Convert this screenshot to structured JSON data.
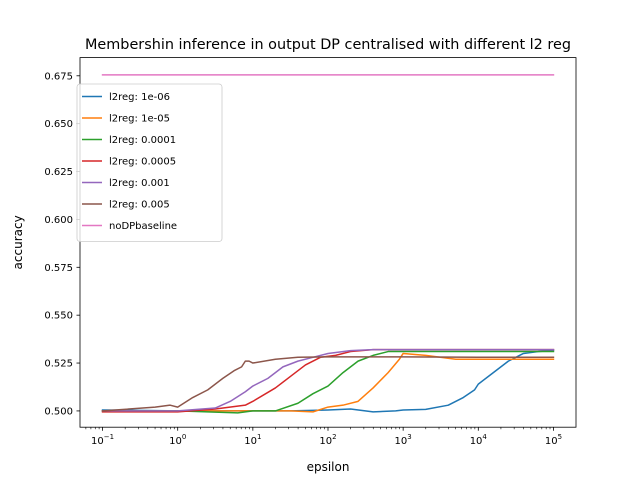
{
  "chart_data": {
    "type": "line",
    "title": "Membershin inference in output DP centralised with different l2 reg",
    "xlabel": "epsilon",
    "ylabel": "accuracy",
    "x_scale": "log",
    "xlim_log10": [
      -1.3,
      5.3
    ],
    "ylim": [
      0.4915,
      0.6845
    ],
    "x_ticks": [
      {
        "exp": -1,
        "label_base": "10",
        "label_exp": "−1"
      },
      {
        "exp": 0,
        "label_base": "10",
        "label_exp": "0"
      },
      {
        "exp": 1,
        "label_base": "10",
        "label_exp": "1"
      },
      {
        "exp": 2,
        "label_base": "10",
        "label_exp": "2"
      },
      {
        "exp": 3,
        "label_base": "10",
        "label_exp": "3"
      },
      {
        "exp": 4,
        "label_base": "10",
        "label_exp": "4"
      },
      {
        "exp": 5,
        "label_base": "10",
        "label_exp": "5"
      }
    ],
    "y_ticks": [
      {
        "value": 0.5,
        "label": "0.500"
      },
      {
        "value": 0.525,
        "label": "0.525"
      },
      {
        "value": 0.55,
        "label": "0.550"
      },
      {
        "value": 0.575,
        "label": "0.575"
      },
      {
        "value": 0.6,
        "label": "0.600"
      },
      {
        "value": 0.625,
        "label": "0.625"
      },
      {
        "value": 0.65,
        "label": "0.650"
      },
      {
        "value": 0.675,
        "label": "0.675"
      }
    ],
    "grid": false,
    "legend_position": "upper-left",
    "series": [
      {
        "name": "l2reg: 1e-06",
        "color": "#1f77b4",
        "log_x": [
          -1,
          0,
          1,
          1.5,
          2,
          2.3,
          2.6,
          2.9,
          3,
          3.3,
          3.6,
          3.8,
          3.95,
          4,
          4.2,
          4.4,
          4.6,
          4.8,
          5
        ],
        "y": [
          0.5005,
          0.5,
          0.5,
          0.5,
          0.5005,
          0.501,
          0.4995,
          0.5,
          0.5005,
          0.5008,
          0.503,
          0.507,
          0.511,
          0.514,
          0.52,
          0.526,
          0.53,
          0.531,
          0.5315
        ]
      },
      {
        "name": "l2reg: 1e-05",
        "color": "#ff7f0e",
        "log_x": [
          -1,
          0,
          1,
          1.5,
          1.8,
          2,
          2.2,
          2.4,
          2.6,
          2.8,
          2.95,
          3,
          3.3,
          3.7,
          4,
          4.5,
          5
        ],
        "y": [
          0.5,
          0.5,
          0.5,
          0.5,
          0.4995,
          0.502,
          0.503,
          0.505,
          0.512,
          0.52,
          0.527,
          0.53,
          0.529,
          0.527,
          0.527,
          0.527,
          0.527
        ]
      },
      {
        "name": "l2reg: 0.0001",
        "color": "#2ca02c",
        "log_x": [
          -1,
          0,
          0.8,
          1,
          1.3,
          1.6,
          1.8,
          2,
          2.2,
          2.4,
          2.6,
          2.8,
          3,
          3.5,
          4,
          5
        ],
        "y": [
          0.5,
          0.5,
          0.499,
          0.5,
          0.5,
          0.504,
          0.509,
          0.513,
          0.52,
          0.526,
          0.529,
          0.531,
          0.531,
          0.531,
          0.531,
          0.531
        ]
      },
      {
        "name": "l2reg: 0.0005",
        "color": "#d62728",
        "log_x": [
          -1,
          -0.4,
          0,
          0.5,
          0.9,
          1,
          1.3,
          1.5,
          1.7,
          1.9,
          2.1,
          2.3,
          2.6,
          3,
          4,
          5
        ],
        "y": [
          0.4995,
          0.4995,
          0.4995,
          0.501,
          0.503,
          0.505,
          0.512,
          0.518,
          0.524,
          0.528,
          0.529,
          0.531,
          0.532,
          0.532,
          0.532,
          0.532
        ]
      },
      {
        "name": "l2reg: 0.001",
        "color": "#9467bd",
        "log_x": [
          -1,
          0,
          0.5,
          0.7,
          0.9,
          1,
          1.2,
          1.4,
          1.6,
          1.8,
          2,
          2.3,
          2.6,
          3,
          4,
          5
        ],
        "y": [
          0.5,
          0.5,
          0.5015,
          0.505,
          0.51,
          0.513,
          0.517,
          0.523,
          0.526,
          0.528,
          0.53,
          0.5315,
          0.532,
          0.532,
          0.532,
          0.532
        ]
      },
      {
        "name": "l2reg: 0.005",
        "color": "#8c564b",
        "log_x": [
          -1,
          -0.3,
          -0.1,
          0,
          0.2,
          0.4,
          0.6,
          0.75,
          0.85,
          0.9,
          0.95,
          1,
          1.3,
          1.6,
          2,
          3,
          4,
          5
        ],
        "y": [
          0.5,
          0.502,
          0.503,
          0.502,
          0.507,
          0.511,
          0.517,
          0.521,
          0.523,
          0.526,
          0.526,
          0.525,
          0.527,
          0.528,
          0.5282,
          0.5282,
          0.528,
          0.528
        ]
      },
      {
        "name": "noDPbaseline",
        "color": "#e377c2",
        "log_x": [
          -1,
          5
        ],
        "y": [
          0.6755,
          0.6755
        ]
      }
    ]
  }
}
